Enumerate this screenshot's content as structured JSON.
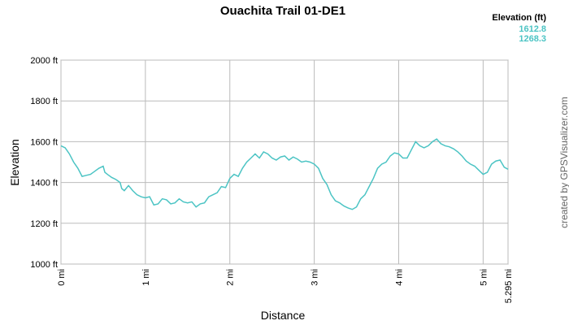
{
  "chart_data": {
    "type": "line",
    "title": "Ouachita Trail 01-DE1",
    "x_label": "Distance",
    "y_label": "Elevation",
    "credit": "created by GPSVisualizer.com",
    "legend": {
      "title": "Elevation (ft)",
      "max": 1612.8,
      "min": 1268.3,
      "color": "#4cc4c4"
    },
    "grid": true,
    "xlim": [
      0,
      5.295
    ],
    "ylim": [
      1000,
      2000
    ],
    "xticks": [
      {
        "value": 0,
        "label": "0 mi"
      },
      {
        "value": 1,
        "label": "1 mi"
      },
      {
        "value": 2,
        "label": "2 mi"
      },
      {
        "value": 3,
        "label": "3 mi"
      },
      {
        "value": 4,
        "label": "4 mi"
      },
      {
        "value": 5,
        "label": "5 mi"
      },
      {
        "value": 5.295,
        "label": "5.295 mi"
      }
    ],
    "yticks": [
      {
        "value": 1000,
        "label": "1000 ft"
      },
      {
        "value": 1200,
        "label": "1200 ft"
      },
      {
        "value": 1400,
        "label": "1400 ft"
      },
      {
        "value": 1600,
        "label": "1600 ft"
      },
      {
        "value": 1800,
        "label": "1800 ft"
      },
      {
        "value": 2000,
        "label": "2000 ft"
      }
    ],
    "x": [
      0,
      0.05,
      0.1,
      0.15,
      0.2,
      0.25,
      0.3,
      0.35,
      0.4,
      0.45,
      0.5,
      0.52,
      0.55,
      0.6,
      0.65,
      0.7,
      0.72,
      0.75,
      0.8,
      0.85,
      0.9,
      0.95,
      1.0,
      1.05,
      1.1,
      1.15,
      1.2,
      1.25,
      1.3,
      1.35,
      1.4,
      1.45,
      1.5,
      1.55,
      1.6,
      1.65,
      1.7,
      1.75,
      1.8,
      1.85,
      1.9,
      1.95,
      2.0,
      2.05,
      2.1,
      2.15,
      2.2,
      2.25,
      2.3,
      2.35,
      2.4,
      2.45,
      2.5,
      2.55,
      2.6,
      2.65,
      2.7,
      2.75,
      2.8,
      2.85,
      2.9,
      2.95,
      3.0,
      3.05,
      3.1,
      3.15,
      3.2,
      3.25,
      3.3,
      3.35,
      3.4,
      3.45,
      3.5,
      3.55,
      3.6,
      3.65,
      3.7,
      3.75,
      3.8,
      3.85,
      3.9,
      3.95,
      4.0,
      4.05,
      4.1,
      4.15,
      4.2,
      4.25,
      4.3,
      4.35,
      4.4,
      4.45,
      4.5,
      4.55,
      4.6,
      4.65,
      4.7,
      4.75,
      4.8,
      4.85,
      4.9,
      4.95,
      5.0,
      5.05,
      5.1,
      5.15,
      5.2,
      5.25,
      5.295
    ],
    "series": [
      {
        "name": "Elevation (ft)",
        "color": "#4cc4c4",
        "values": [
          1580,
          1570,
          1540,
          1500,
          1470,
          1430,
          1435,
          1440,
          1455,
          1470,
          1480,
          1450,
          1440,
          1425,
          1415,
          1400,
          1370,
          1360,
          1385,
          1360,
          1340,
          1330,
          1325,
          1330,
          1290,
          1295,
          1320,
          1315,
          1295,
          1300,
          1320,
          1305,
          1300,
          1305,
          1280,
          1295,
          1300,
          1330,
          1340,
          1350,
          1380,
          1375,
          1420,
          1440,
          1430,
          1470,
          1500,
          1520,
          1540,
          1520,
          1550,
          1540,
          1520,
          1510,
          1525,
          1530,
          1510,
          1525,
          1515,
          1500,
          1505,
          1500,
          1490,
          1470,
          1420,
          1390,
          1340,
          1310,
          1300,
          1285,
          1275,
          1268,
          1280,
          1320,
          1340,
          1380,
          1420,
          1470,
          1490,
          1500,
          1530,
          1545,
          1540,
          1520,
          1520,
          1560,
          1600,
          1580,
          1570,
          1580,
          1600,
          1613,
          1590,
          1580,
          1575,
          1565,
          1550,
          1530,
          1505,
          1490,
          1480,
          1460,
          1440,
          1450,
          1490,
          1505,
          1510,
          1475,
          1465
        ]
      }
    ]
  }
}
